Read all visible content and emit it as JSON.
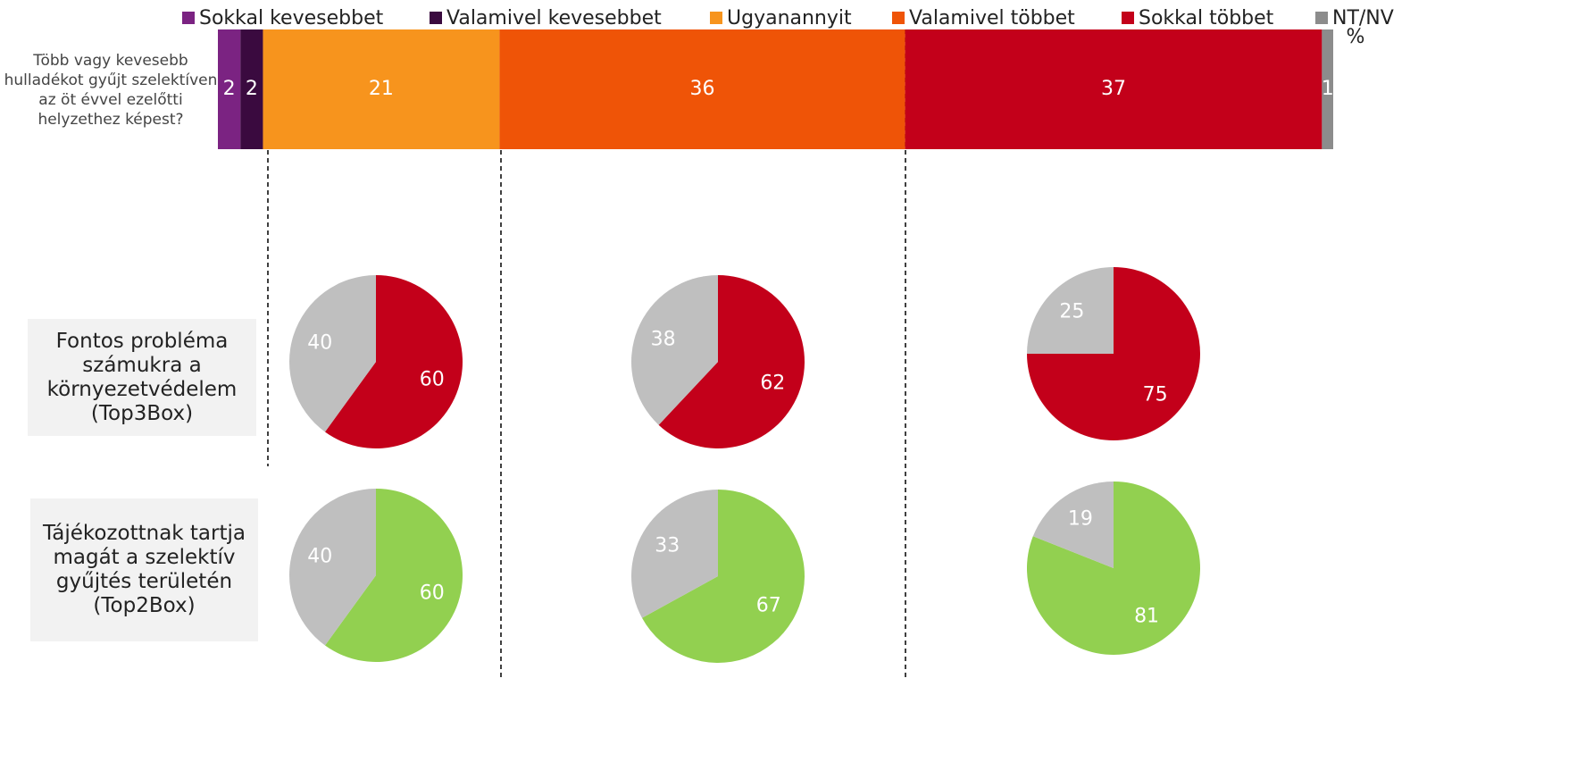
{
  "chart_data": [
    {
      "type": "stacked-bar",
      "annotation": "%",
      "categories": [
        "Több vagy kevesebb hulladékot gyűjt szelektíven az öt évvel ezelőtti helyzethez képest?"
      ],
      "series": [
        {
          "name": "Sokkal kevesebbet",
          "color": "#7b2382",
          "values": [
            2
          ]
        },
        {
          "name": "Valamivel kevesebbet",
          "color": "#3a0a3f",
          "values": [
            2
          ]
        },
        {
          "name": "Ugyanannyit",
          "color": "#f7941d",
          "values": [
            21
          ]
        },
        {
          "name": "Valamivel többet",
          "color": "#ef5407",
          "values": [
            36
          ]
        },
        {
          "name": "Sokkal többet",
          "color": "#c3001a",
          "values": [
            37
          ]
        },
        {
          "name": "NT/NV",
          "color": "#8c8c8c",
          "values": [
            1
          ]
        }
      ]
    },
    {
      "type": "pie",
      "values": [
        60,
        40
      ],
      "colors": [
        "#c3001a",
        "#bfbfbf"
      ]
    },
    {
      "type": "pie",
      "values": [
        62,
        38
      ],
      "colors": [
        "#c3001a",
        "#bfbfbf"
      ]
    },
    {
      "type": "pie",
      "values": [
        75,
        25
      ],
      "colors": [
        "#c3001a",
        "#bfbfbf"
      ]
    },
    {
      "type": "pie",
      "values": [
        60,
        40
      ],
      "colors": [
        "#92d050",
        "#bfbfbf"
      ]
    },
    {
      "type": "pie",
      "values": [
        67,
        33
      ],
      "colors": [
        "#92d050",
        "#bfbfbf"
      ]
    },
    {
      "type": "pie",
      "values": [
        81,
        19
      ],
      "colors": [
        "#92d050",
        "#bfbfbf"
      ]
    }
  ],
  "row_labels": [
    "Fontos probléma számukra a környezetvédelem (Top3Box)",
    "Tájékozottnak tartja magát a szelektív gyűjtés területén (Top2Box)"
  ]
}
